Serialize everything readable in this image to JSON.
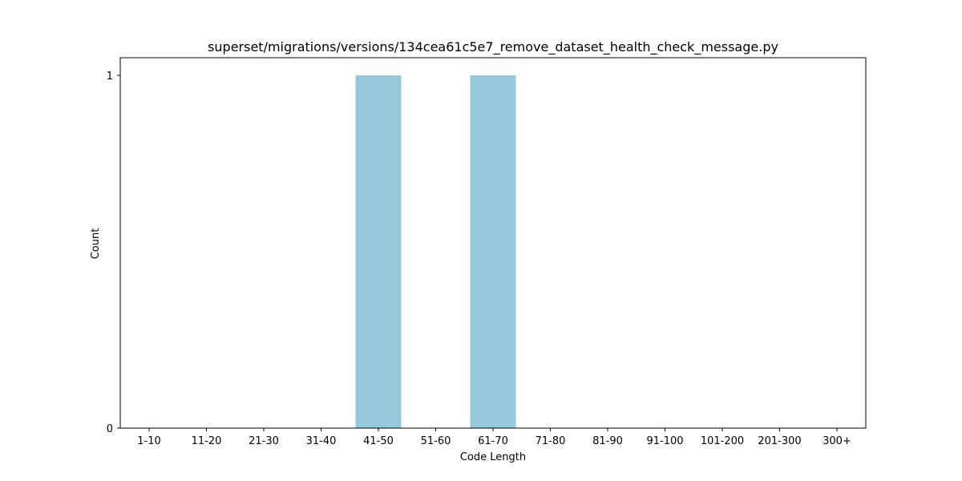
{
  "chart_data": {
    "type": "bar",
    "title": "superset/migrations/versions/134cea61c5e7_remove_dataset_health_check_message.py",
    "xlabel": "Code Length",
    "ylabel": "Count",
    "categories": [
      "1-10",
      "11-20",
      "21-30",
      "31-40",
      "41-50",
      "51-60",
      "61-70",
      "71-80",
      "81-90",
      "91-100",
      "101-200",
      "201-300",
      "300+"
    ],
    "values": [
      0,
      0,
      0,
      0,
      1,
      0,
      1,
      0,
      0,
      0,
      0,
      0,
      0
    ],
    "ylim": [
      0,
      1
    ],
    "yticks": [
      0,
      1
    ],
    "grid": false,
    "bar_color": "#96c9dc"
  }
}
